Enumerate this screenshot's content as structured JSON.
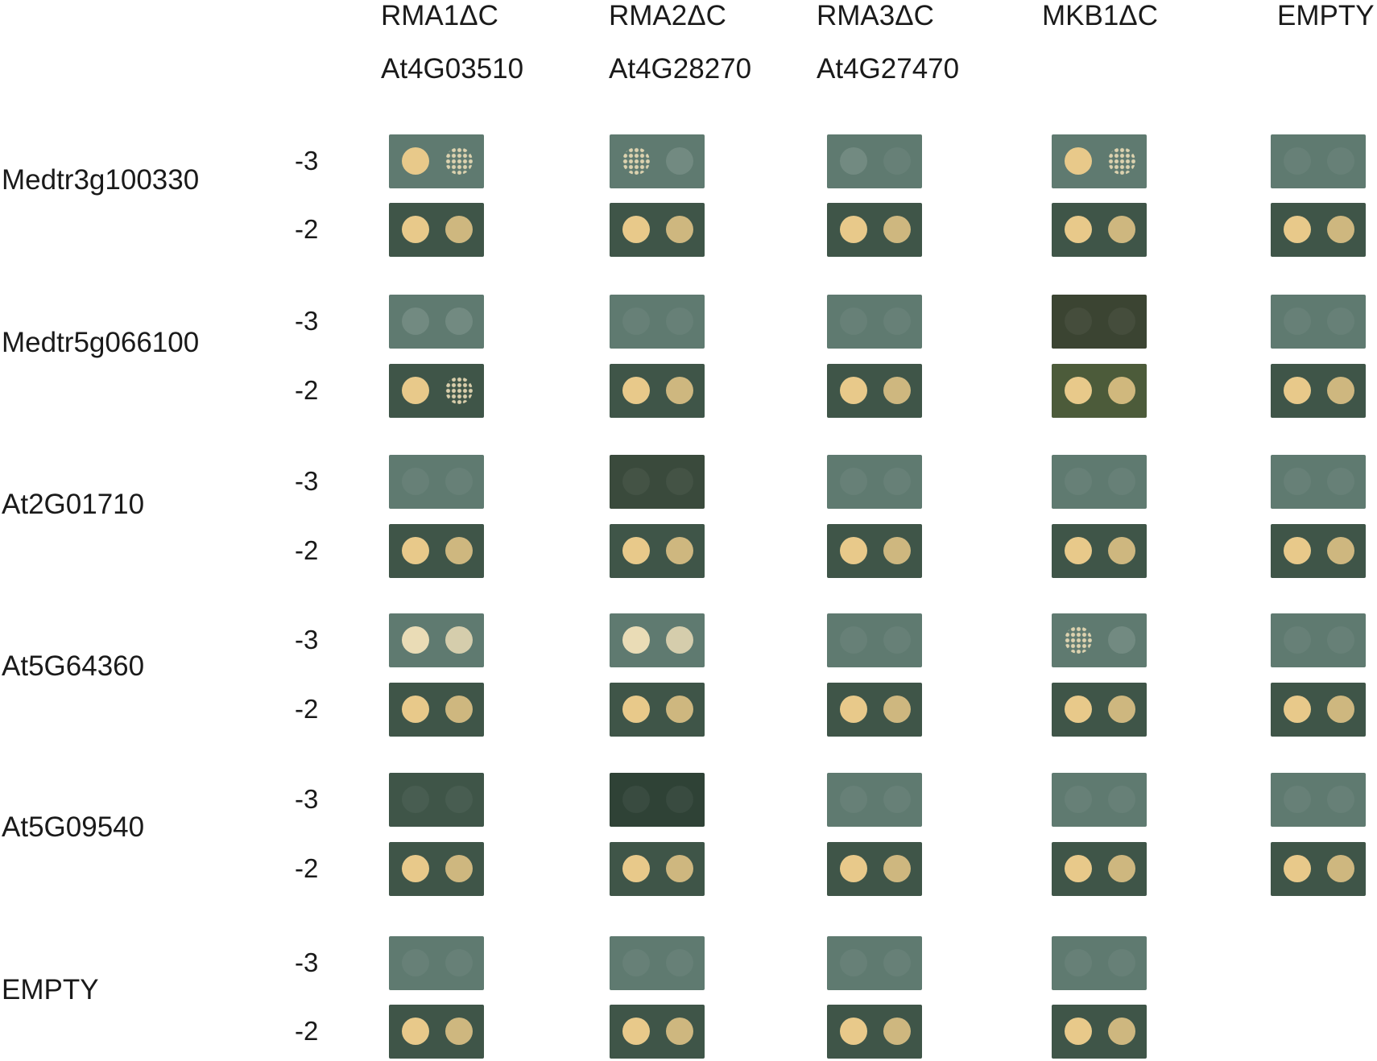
{
  "columns": [
    {
      "name": "RMA1ΔC",
      "locus": "At4G03510"
    },
    {
      "name": "RMA2ΔC",
      "locus": "At4G28270"
    },
    {
      "name": "RMA3ΔC",
      "locus": "At4G27470"
    },
    {
      "name": "MKB1ΔC",
      "locus": ""
    },
    {
      "name": "EMPTY",
      "locus": ""
    }
  ],
  "rows": [
    {
      "label": "Medtr3g100330"
    },
    {
      "label": "Medtr5g066100"
    },
    {
      "label": "At2G01710"
    },
    {
      "label": "At5G64360"
    },
    {
      "label": "At5G09540"
    },
    {
      "label": "EMPTY"
    }
  ],
  "dilutions": [
    "-3",
    "-2"
  ],
  "colors": {
    "plate_light": "#5f7a70",
    "plate_dark": "#3f5548",
    "colony": "#e8c98a",
    "colony_pale": "#eadcb6"
  }
}
